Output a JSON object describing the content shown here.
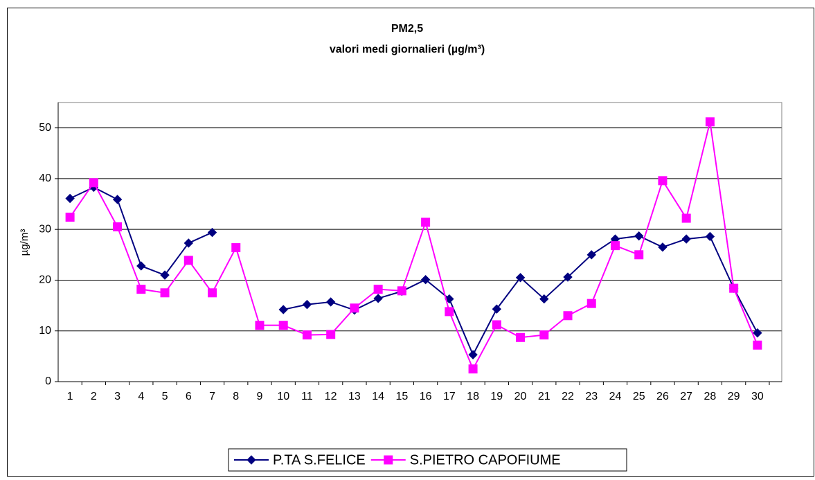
{
  "chart_data": {
    "type": "line",
    "title": "PM2,5",
    "subtitle": "valori medi giornalieri (µg/m³)",
    "ylabel": "µg/m³",
    "categories": [
      "1",
      "2",
      "3",
      "4",
      "5",
      "6",
      "7",
      "8",
      "9",
      "10",
      "11",
      "12",
      "13",
      "14",
      "15",
      "16",
      "17",
      "18",
      "19",
      "20",
      "21",
      "22",
      "23",
      "24",
      "25",
      "26",
      "27",
      "28",
      "29",
      "30"
    ],
    "series": [
      {
        "name": "P.TA S.FELICE",
        "color": "#000080",
        "marker": "diamond",
        "values": [
          36.1,
          38.3,
          35.9,
          22.8,
          21.0,
          27.3,
          29.4,
          null,
          null,
          14.2,
          15.2,
          15.7,
          14.1,
          16.4,
          17.8,
          20.1,
          16.3,
          5.3,
          14.3,
          20.5,
          16.3,
          20.6,
          25.0,
          28.1,
          28.7,
          26.5,
          28.1,
          28.6,
          18.4,
          9.6
        ]
      },
      {
        "name": "S.PIETRO CAPOFIUME",
        "color": "#ff00ff",
        "marker": "square",
        "values": [
          32.4,
          39.2,
          30.5,
          18.2,
          17.5,
          23.9,
          17.5,
          26.4,
          11.1,
          11.1,
          9.2,
          9.3,
          14.5,
          18.2,
          17.9,
          31.4,
          13.8,
          2.5,
          11.2,
          8.7,
          9.2,
          13.0,
          15.4,
          26.8,
          25.0,
          39.6,
          32.2,
          51.2,
          18.4,
          7.2
        ]
      }
    ],
    "ylim": [
      0,
      55
    ],
    "yticks": [
      0,
      10,
      20,
      30,
      40,
      50
    ],
    "grid": true,
    "legend": "bottom"
  }
}
